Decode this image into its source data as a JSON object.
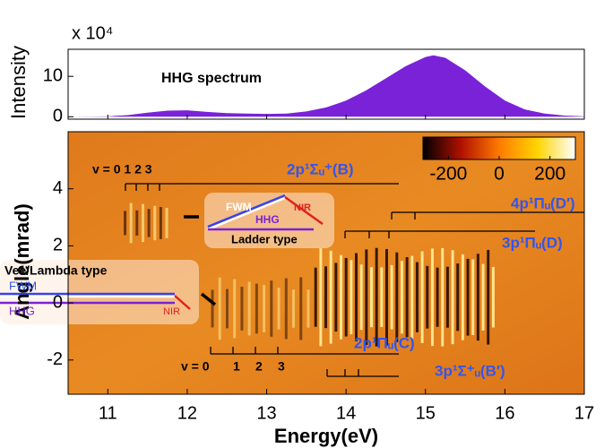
{
  "chart_data": [
    {
      "type": "area",
      "ylabel": "Intensity",
      "yscale_label": "x 10⁴",
      "legend": "HHG spectrum",
      "color": "#7a22d8",
      "x": [
        10.5,
        11.0,
        11.25,
        11.5,
        11.75,
        12.0,
        12.25,
        12.5,
        12.75,
        13.0,
        13.25,
        13.5,
        13.75,
        14.0,
        14.25,
        14.5,
        14.75,
        15.0,
        15.1,
        15.25,
        15.5,
        15.75,
        16.0,
        16.25,
        16.5,
        16.75,
        17.0
      ],
      "values": [
        0,
        0.1,
        0.4,
        1.0,
        1.5,
        1.6,
        1.2,
        0.9,
        0.8,
        0.7,
        0.8,
        1.3,
        2.3,
        4.0,
        6.5,
        9.5,
        12.5,
        14.8,
        15.2,
        14.6,
        11.5,
        7.5,
        4.0,
        1.8,
        0.8,
        0.3,
        0.1
      ],
      "xlim": [
        10.5,
        17
      ],
      "ylim": [
        -0.6,
        16.7
      ],
      "yticks": [
        0,
        10
      ]
    },
    {
      "type": "heatmap",
      "xlabel": "Energy(eV)",
      "ylabel": "Angle(mrad)",
      "xlim": [
        10.5,
        17
      ],
      "ylim": [
        -3.2,
        6.0
      ],
      "xticks": [
        11,
        12,
        13,
        14,
        15,
        16,
        17
      ],
      "yticks": [
        -2,
        0,
        2,
        4
      ],
      "colorbar": {
        "clim": [
          -300,
          300
        ],
        "ticks": [
          -200,
          0,
          200
        ],
        "colors": [
          "#000000",
          "#b01000",
          "#ff7a00",
          "#ffd400",
          "#ffffff"
        ]
      },
      "annotations": [
        "2p¹Σᵤ⁺(B)",
        "4p¹Πᵤ(D′)",
        "3p¹Πᵤ(D)",
        "2p¹Πᵤ(C)",
        "3p¹Σ⁺ᵤ(B′)",
        "v = 0 1 2 3",
        "v = 0",
        "1",
        "2",
        "3",
        "FWM",
        "HHG",
        "NIR",
        "Ladder type",
        "Vee/Lambda type",
        "FWM",
        "HHG",
        "NIR"
      ]
    }
  ]
}
